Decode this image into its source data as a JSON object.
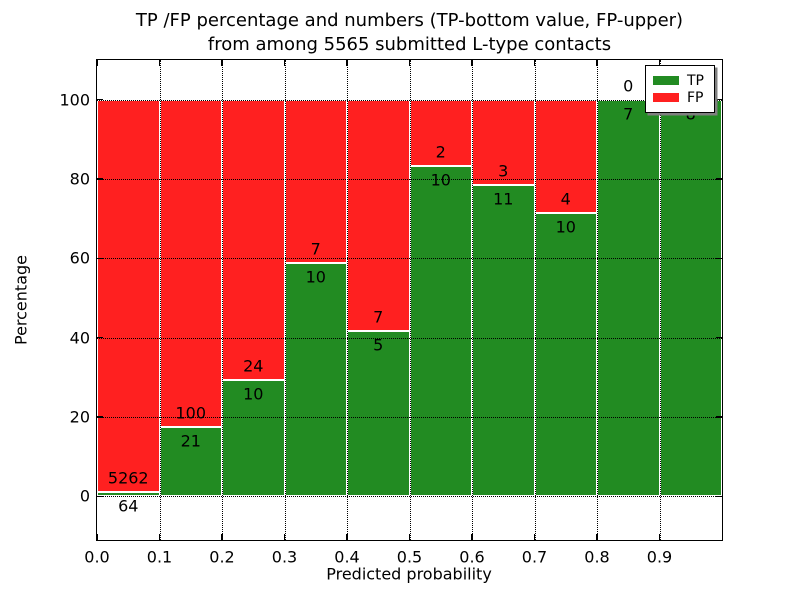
{
  "title": {
    "line1": "TP /FP percentage and numbers (TP-bottom value, FP-upper)",
    "line2": "from among 5565 submitted L-type contacts"
  },
  "chart_data": {
    "type": "bar",
    "stacked": true,
    "title": "TP /FP percentage and numbers (TP-bottom value, FP-upper) from among 5565 submitted L-type contacts",
    "xlabel": "Predicted probability",
    "ylabel": "Percentage",
    "xlim": [
      0.0,
      1.0
    ],
    "ylim": [
      -11,
      110
    ],
    "xtick_labels": [
      "0.0",
      "0.1",
      "0.2",
      "0.3",
      "0.4",
      "0.5",
      "0.6",
      "0.7",
      "0.8",
      "0.9"
    ],
    "yticks": [
      0,
      20,
      40,
      60,
      80,
      100
    ],
    "grid": "dotted black, horizontal at yticks and vertical at xticks, drawn over bars",
    "total_submitted_contacts": 5565,
    "series_note": "TP percentage stacked from bottom (green), FP percentage stacked above to 100% (red); numeric labels show raw counts: TP below the boundary, FP above it",
    "bins": [
      {
        "x_start": 0.0,
        "x_end": 0.1,
        "tp_count": 64,
        "fp_count": 5262,
        "tp_pct": 1.2,
        "fp_pct": 98.8
      },
      {
        "x_start": 0.1,
        "x_end": 0.2,
        "tp_count": 21,
        "fp_count": 100,
        "tp_pct": 17.36,
        "fp_pct": 82.64
      },
      {
        "x_start": 0.2,
        "x_end": 0.3,
        "tp_count": 10,
        "fp_count": 24,
        "tp_pct": 29.41,
        "fp_pct": 70.59
      },
      {
        "x_start": 0.3,
        "x_end": 0.4,
        "tp_count": 10,
        "fp_count": 7,
        "tp_pct": 58.82,
        "fp_pct": 41.18
      },
      {
        "x_start": 0.4,
        "x_end": 0.5,
        "tp_count": 5,
        "fp_count": 7,
        "tp_pct": 41.67,
        "fp_pct": 58.33
      },
      {
        "x_start": 0.5,
        "x_end": 0.6,
        "tp_count": 10,
        "fp_count": 2,
        "tp_pct": 83.33,
        "fp_pct": 16.67
      },
      {
        "x_start": 0.6,
        "x_end": 0.7,
        "tp_count": 11,
        "fp_count": 3,
        "tp_pct": 78.57,
        "fp_pct": 21.43
      },
      {
        "x_start": 0.7,
        "x_end": 0.8,
        "tp_count": 10,
        "fp_count": 4,
        "tp_pct": 71.43,
        "fp_pct": 28.57
      },
      {
        "x_start": 0.8,
        "x_end": 0.9,
        "tp_count": 7,
        "fp_count": 0,
        "tp_pct": 100,
        "fp_pct": 0
      },
      {
        "x_start": 0.9,
        "x_end": 1.0,
        "tp_count": 8,
        "fp_count": null,
        "tp_pct": 100,
        "fp_pct": 0
      }
    ],
    "legend": {
      "position": "upper right, inside axes, overlapping last bar labels",
      "entries": [
        {
          "label": "TP",
          "color": "#228B22"
        },
        {
          "label": "FP",
          "color": "#FF2020"
        }
      ]
    },
    "colors": {
      "tp": "#228B22",
      "fp": "#FF2020"
    }
  },
  "axes": {
    "xlabel": "Predicted probability",
    "ylabel": "Percentage"
  }
}
